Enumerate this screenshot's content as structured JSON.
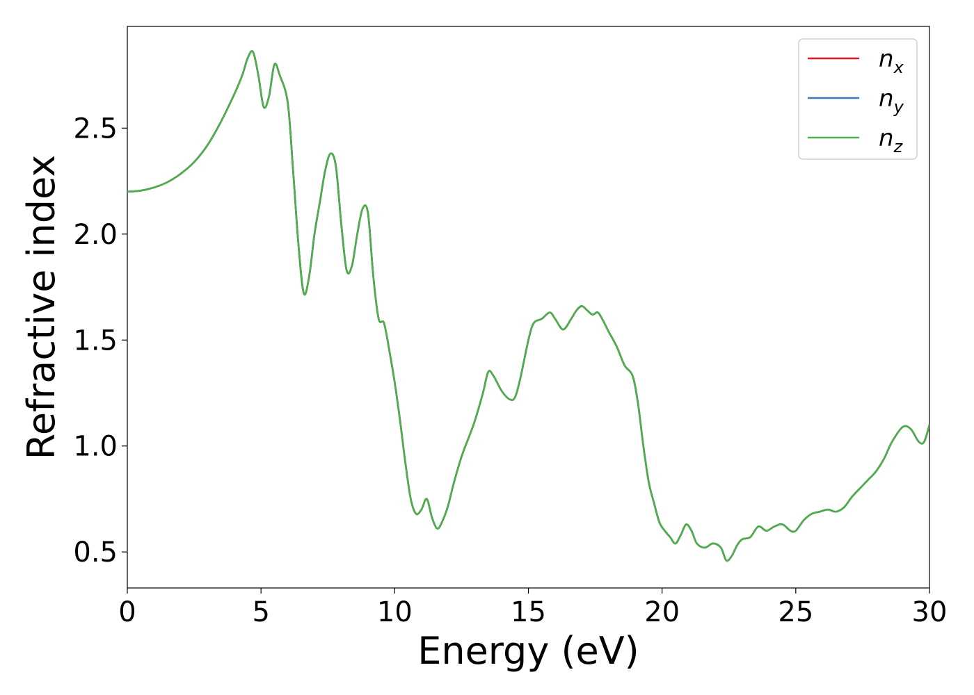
{
  "chart_data": {
    "type": "line",
    "title": "",
    "xlabel": "Energy (eV)",
    "ylabel": "Refractive index",
    "xlim": [
      0,
      30
    ],
    "ylim": [
      0.33,
      2.98
    ],
    "xticks": [
      0,
      5,
      10,
      15,
      20,
      25,
      30
    ],
    "xtick_labels": [
      "0",
      "5",
      "10",
      "15",
      "20",
      "25",
      "30"
    ],
    "yticks": [
      0.5,
      1.0,
      1.5,
      2.0,
      2.5
    ],
    "ytick_labels": [
      "0.5",
      "1.0",
      "1.5",
      "2.0",
      "2.5"
    ],
    "grid": false,
    "legend_position": "top-right",
    "x": [
      0.0,
      0.5,
      1.0,
      1.5,
      2.0,
      2.5,
      3.0,
      3.5,
      4.0,
      4.3,
      4.5,
      4.7,
      4.9,
      5.1,
      5.3,
      5.5,
      5.7,
      6.0,
      6.2,
      6.4,
      6.6,
      6.8,
      7.0,
      7.2,
      7.4,
      7.6,
      7.8,
      8.0,
      8.2,
      8.4,
      8.6,
      8.8,
      9.0,
      9.2,
      9.4,
      9.6,
      9.8,
      10.0,
      10.2,
      10.4,
      10.6,
      10.8,
      11.0,
      11.2,
      11.4,
      11.6,
      11.8,
      12.0,
      12.2,
      12.5,
      12.8,
      13.0,
      13.3,
      13.5,
      13.7,
      14.0,
      14.3,
      14.5,
      14.7,
      15.0,
      15.2,
      15.5,
      15.8,
      16.0,
      16.3,
      16.6,
      16.8,
      17.0,
      17.2,
      17.4,
      17.6,
      17.8,
      18.0,
      18.3,
      18.6,
      18.9,
      19.1,
      19.3,
      19.5,
      19.7,
      19.9,
      20.1,
      20.3,
      20.5,
      20.7,
      20.9,
      21.1,
      21.3,
      21.6,
      21.9,
      22.2,
      22.4,
      22.6,
      22.8,
      23.0,
      23.3,
      23.6,
      23.9,
      24.2,
      24.5,
      24.8,
      25.0,
      25.3,
      25.6,
      25.9,
      26.2,
      26.5,
      26.8,
      27.1,
      27.4,
      27.7,
      28.0,
      28.3,
      28.6,
      29.0,
      29.3,
      29.6,
      29.8,
      30.0
    ],
    "series": [
      {
        "name": "n_x",
        "label_base": "n",
        "label_sub": "x",
        "color": "#e41a1c",
        "y": [
          2.2,
          2.205,
          2.22,
          2.245,
          2.285,
          2.34,
          2.42,
          2.53,
          2.66,
          2.75,
          2.83,
          2.86,
          2.75,
          2.6,
          2.65,
          2.8,
          2.75,
          2.62,
          2.3,
          1.95,
          1.72,
          1.8,
          2.0,
          2.15,
          2.3,
          2.38,
          2.32,
          2.05,
          1.83,
          1.85,
          2.0,
          2.12,
          2.1,
          1.8,
          1.6,
          1.58,
          1.45,
          1.3,
          1.12,
          0.92,
          0.75,
          0.68,
          0.7,
          0.75,
          0.66,
          0.61,
          0.65,
          0.72,
          0.82,
          0.95,
          1.05,
          1.12,
          1.25,
          1.35,
          1.33,
          1.26,
          1.22,
          1.23,
          1.32,
          1.5,
          1.58,
          1.6,
          1.63,
          1.6,
          1.55,
          1.6,
          1.64,
          1.66,
          1.64,
          1.62,
          1.63,
          1.59,
          1.54,
          1.47,
          1.38,
          1.33,
          1.2,
          1.0,
          0.83,
          0.73,
          0.64,
          0.6,
          0.57,
          0.54,
          0.58,
          0.63,
          0.6,
          0.54,
          0.52,
          0.54,
          0.52,
          0.46,
          0.48,
          0.53,
          0.56,
          0.57,
          0.62,
          0.6,
          0.62,
          0.63,
          0.6,
          0.6,
          0.65,
          0.68,
          0.69,
          0.7,
          0.69,
          0.71,
          0.76,
          0.8,
          0.84,
          0.88,
          0.94,
          1.02,
          1.09,
          1.08,
          1.02,
          1.02,
          1.1
        ]
      },
      {
        "name": "n_y",
        "label_base": "n",
        "label_sub": "y",
        "color": "#377eb8",
        "y": [
          2.2,
          2.205,
          2.22,
          2.245,
          2.285,
          2.34,
          2.42,
          2.53,
          2.66,
          2.75,
          2.83,
          2.86,
          2.75,
          2.6,
          2.65,
          2.8,
          2.75,
          2.62,
          2.3,
          1.95,
          1.72,
          1.8,
          2.0,
          2.15,
          2.3,
          2.38,
          2.32,
          2.05,
          1.83,
          1.85,
          2.0,
          2.12,
          2.1,
          1.8,
          1.6,
          1.58,
          1.45,
          1.3,
          1.12,
          0.92,
          0.75,
          0.68,
          0.7,
          0.75,
          0.66,
          0.61,
          0.65,
          0.72,
          0.82,
          0.95,
          1.05,
          1.12,
          1.25,
          1.35,
          1.33,
          1.26,
          1.22,
          1.23,
          1.32,
          1.5,
          1.58,
          1.6,
          1.63,
          1.6,
          1.55,
          1.6,
          1.64,
          1.66,
          1.64,
          1.62,
          1.63,
          1.59,
          1.54,
          1.47,
          1.38,
          1.33,
          1.2,
          1.0,
          0.83,
          0.73,
          0.64,
          0.6,
          0.57,
          0.54,
          0.58,
          0.63,
          0.6,
          0.54,
          0.52,
          0.54,
          0.52,
          0.46,
          0.48,
          0.53,
          0.56,
          0.57,
          0.62,
          0.6,
          0.62,
          0.63,
          0.6,
          0.6,
          0.65,
          0.68,
          0.69,
          0.7,
          0.69,
          0.71,
          0.76,
          0.8,
          0.84,
          0.88,
          0.94,
          1.02,
          1.09,
          1.08,
          1.02,
          1.02,
          1.1
        ]
      },
      {
        "name": "n_z",
        "label_base": "n",
        "label_sub": "z",
        "color": "#4daf4a",
        "y": [
          2.2,
          2.205,
          2.22,
          2.245,
          2.285,
          2.34,
          2.42,
          2.53,
          2.66,
          2.75,
          2.83,
          2.86,
          2.75,
          2.6,
          2.65,
          2.8,
          2.75,
          2.62,
          2.3,
          1.95,
          1.72,
          1.8,
          2.0,
          2.15,
          2.3,
          2.38,
          2.32,
          2.05,
          1.83,
          1.85,
          2.0,
          2.12,
          2.1,
          1.8,
          1.6,
          1.58,
          1.45,
          1.3,
          1.12,
          0.92,
          0.75,
          0.68,
          0.7,
          0.75,
          0.66,
          0.61,
          0.65,
          0.72,
          0.82,
          0.95,
          1.05,
          1.12,
          1.25,
          1.35,
          1.33,
          1.26,
          1.22,
          1.23,
          1.32,
          1.5,
          1.58,
          1.6,
          1.63,
          1.6,
          1.55,
          1.6,
          1.64,
          1.66,
          1.64,
          1.62,
          1.63,
          1.59,
          1.54,
          1.47,
          1.38,
          1.33,
          1.2,
          1.0,
          0.83,
          0.73,
          0.64,
          0.6,
          0.57,
          0.54,
          0.58,
          0.63,
          0.6,
          0.54,
          0.52,
          0.54,
          0.52,
          0.46,
          0.48,
          0.53,
          0.56,
          0.57,
          0.62,
          0.6,
          0.62,
          0.63,
          0.6,
          0.6,
          0.65,
          0.68,
          0.69,
          0.7,
          0.69,
          0.71,
          0.76,
          0.8,
          0.84,
          0.88,
          0.94,
          1.02,
          1.09,
          1.08,
          1.02,
          1.02,
          1.1
        ]
      }
    ]
  }
}
